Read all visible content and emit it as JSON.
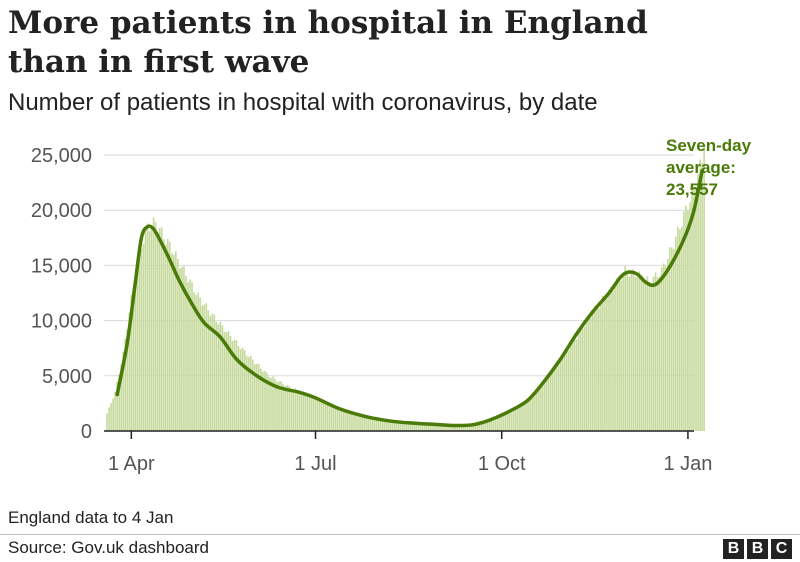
{
  "header": {
    "title_line1": "More patients in hospital in England",
    "title_line2": "than in first wave",
    "subtitle": "Number of patients in hospital with coronavirus, by date"
  },
  "annotation": {
    "line1": "Seven-day",
    "line2": "average:",
    "line3": "23,557"
  },
  "footer": {
    "note": "England data to 4 Jan",
    "source": "Source: Gov.uk dashboard",
    "logo": [
      "B",
      "B",
      "C"
    ]
  },
  "colors": {
    "bars": "#c6da9d",
    "line": "#4a7a07",
    "grid": "#d9d9d9",
    "axis": "#222222",
    "text": "#222222",
    "tick_text": "#555555"
  },
  "chart_data": {
    "type": "bar",
    "title": "More patients in hospital in England than in first wave",
    "subtitle": "Number of patients in hospital with coronavirus, by date",
    "xlabel": "",
    "ylabel": "",
    "x_unit": "days since 20 Mar 2020",
    "xlim": [
      -1.5,
      290
    ],
    "ylim": [
      0,
      25000
    ],
    "y_ticks": [
      0,
      5000,
      10000,
      15000,
      20000,
      25000
    ],
    "y_tick_labels": [
      "0",
      "5,000",
      "10,000",
      "15,000",
      "20,000",
      "25,000"
    ],
    "x_ticks": [
      12,
      103,
      195,
      287
    ],
    "x_tick_labels": [
      "1 Apr",
      "1 Jul",
      "1 Oct",
      "1 Jan"
    ],
    "grid": true,
    "daily_anchors": [
      [
        0,
        1600
      ],
      [
        4,
        3500
      ],
      [
        8,
        7000
      ],
      [
        12,
        12000
      ],
      [
        16,
        16200
      ],
      [
        20,
        18500
      ],
      [
        24,
        18900
      ],
      [
        28,
        17600
      ],
      [
        32,
        16500
      ],
      [
        38,
        14500
      ],
      [
        45,
        12200
      ],
      [
        52,
        10500
      ],
      [
        60,
        8800
      ],
      [
        70,
        6800
      ],
      [
        80,
        5000
      ],
      [
        90,
        4000
      ],
      [
        103,
        3000
      ],
      [
        115,
        2000
      ],
      [
        130,
        1200
      ],
      [
        145,
        900
      ],
      [
        160,
        650
      ],
      [
        170,
        550
      ],
      [
        178,
        500
      ],
      [
        185,
        600
      ],
      [
        192,
        1000
      ],
      [
        200,
        1800
      ],
      [
        210,
        3200
      ],
      [
        220,
        5500
      ],
      [
        230,
        8000
      ],
      [
        240,
        10800
      ],
      [
        250,
        13000
      ],
      [
        256,
        14500
      ],
      [
        262,
        14200
      ],
      [
        268,
        13500
      ],
      [
        274,
        14500
      ],
      [
        280,
        17000
      ],
      [
        285,
        19500
      ],
      [
        290,
        22000
      ],
      [
        294,
        24500
      ],
      [
        295,
        26500
      ]
    ],
    "series": [
      {
        "name": "Seven-day average",
        "type": "line",
        "points": [
          [
            5,
            3300
          ],
          [
            10,
            8000
          ],
          [
            14,
            13500
          ],
          [
            17,
            17500
          ],
          [
            20,
            18500
          ],
          [
            23,
            18300
          ],
          [
            27,
            17000
          ],
          [
            31,
            15500
          ],
          [
            36,
            13500
          ],
          [
            42,
            11500
          ],
          [
            48,
            9800
          ],
          [
            56,
            8500
          ],
          [
            64,
            6500
          ],
          [
            74,
            5000
          ],
          [
            84,
            4000
          ],
          [
            95,
            3500
          ],
          [
            103,
            3000
          ],
          [
            115,
            2000
          ],
          [
            128,
            1300
          ],
          [
            140,
            900
          ],
          [
            152,
            700
          ],
          [
            162,
            600
          ],
          [
            172,
            500
          ],
          [
            180,
            550
          ],
          [
            186,
            800
          ],
          [
            192,
            1200
          ],
          [
            200,
            1900
          ],
          [
            208,
            2800
          ],
          [
            216,
            4500
          ],
          [
            224,
            6500
          ],
          [
            232,
            8800
          ],
          [
            240,
            10800
          ],
          [
            248,
            12500
          ],
          [
            254,
            14000
          ],
          [
            258,
            14400
          ],
          [
            262,
            14200
          ],
          [
            266,
            13500
          ],
          [
            270,
            13200
          ],
          [
            274,
            13800
          ],
          [
            280,
            15500
          ],
          [
            286,
            17800
          ],
          [
            290,
            20000
          ],
          [
            294,
            23557
          ]
        ]
      }
    ],
    "annotations": [
      "Seven-day average: 23,557"
    ]
  }
}
